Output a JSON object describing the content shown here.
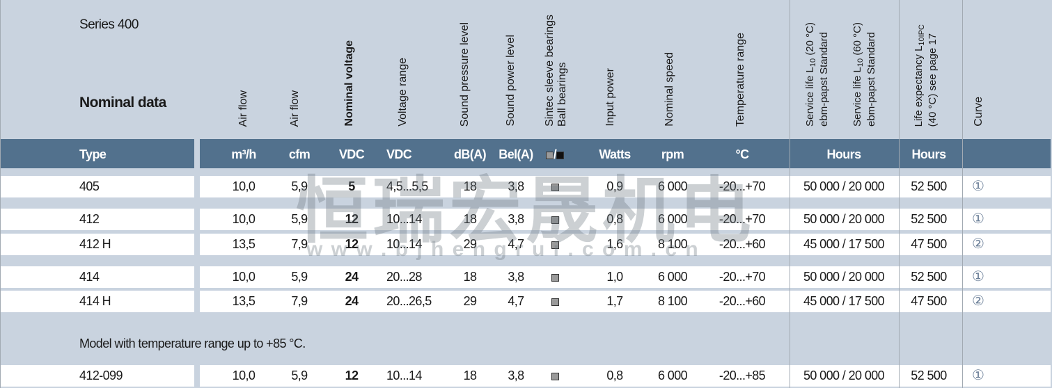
{
  "series": "Series 400",
  "section_title": "Nominal data",
  "columns": [
    {
      "header": "Air flow",
      "unit": "m³/h"
    },
    {
      "header": "Air flow",
      "unit": "cfm"
    },
    {
      "header": "Nominal voltage",
      "unit": "VDC"
    },
    {
      "header": "Voltage range",
      "unit": "VDC"
    },
    {
      "header": "Sound pressure level",
      "unit": "dB(A)"
    },
    {
      "header": "Sound power level",
      "unit": "Bel(A)"
    },
    {
      "header": "Sintec sleeve bearings",
      "header2": "Ball bearings",
      "unit": "/"
    },
    {
      "header": "Input power",
      "unit": "Watts"
    },
    {
      "header": "Nominal speed",
      "unit": "rpm"
    },
    {
      "header": "Temperature range",
      "unit": "°C"
    },
    {
      "header": "Service life L10 (20 °C) ebm-papst Standard",
      "header2": "Service life L10 (60 °C) ebm-papst Standard",
      "unit": "Hours"
    },
    {
      "header": "Life expectancy L10IPC (40 °C) see page 17",
      "unit": "Hours"
    },
    {
      "header": "Curve",
      "unit": ""
    }
  ],
  "header_parts": {
    "sl1_a": "Service life L",
    "sl1_sub": "10",
    "sl1_b": " (20 °C)",
    "sl1_c": "ebm-papst Standard",
    "sl2_a": "Service life L",
    "sl2_sub": "10",
    "sl2_b": " (60 °C)",
    "sl2_c": "ebm-papst Standard",
    "le_a": "Life expectancy L",
    "le_sub": "10IPC",
    "le_c": "(40 °C)  see page 17"
  },
  "type_label": "Type",
  "rows": [
    {
      "type": "405",
      "m3h": "10,0",
      "cfm": "5,9",
      "vnom": "5",
      "vrange": "4,5...5,5",
      "dba": "18",
      "bela": "3,8",
      "bearing": "sintec",
      "watts": "0,9",
      "rpm": "6 000",
      "temp": "-20...+70",
      "life": "50 000 / 20 000",
      "l10ipc": "52 500",
      "curve": "①"
    },
    {
      "type": "412",
      "m3h": "10,0",
      "cfm": "5,9",
      "vnom": "12",
      "vrange": "10...14",
      "dba": "18",
      "bela": "3,8",
      "bearing": "sintec",
      "watts": "0,8",
      "rpm": "6 000",
      "temp": "-20...+70",
      "life": "50 000 / 20 000",
      "l10ipc": "52 500",
      "curve": "①"
    },
    {
      "type": "412 H",
      "m3h": "13,5",
      "cfm": "7,9",
      "vnom": "12",
      "vrange": "10...14",
      "dba": "29",
      "bela": "4,7",
      "bearing": "sintec",
      "watts": "1,6",
      "rpm": "8 100",
      "temp": "-20...+60",
      "life": "45 000 / 17 500",
      "l10ipc": "47 500",
      "curve": "②"
    },
    {
      "type": "414",
      "m3h": "10,0",
      "cfm": "5,9",
      "vnom": "24",
      "vrange": "20...28",
      "dba": "18",
      "bela": "3,8",
      "bearing": "sintec",
      "watts": "1,0",
      "rpm": "6 000",
      "temp": "-20...+70",
      "life": "50 000 / 20 000",
      "l10ipc": "52 500",
      "curve": "①"
    },
    {
      "type": "414 H",
      "m3h": "13,5",
      "cfm": "7,9",
      "vnom": "24",
      "vrange": "20...26,5",
      "dba": "29",
      "bela": "4,7",
      "bearing": "sintec",
      "watts": "1,7",
      "rpm": "8 100",
      "temp": "-20...+60",
      "life": "45 000 / 17 500",
      "l10ipc": "47 500",
      "curve": "②"
    },
    {
      "type": "412-099",
      "m3h": "10,0",
      "cfm": "5,9",
      "vnom": "12",
      "vrange": "10...14",
      "dba": "18",
      "bela": "3,8",
      "bearing": "sintec",
      "watts": "0,8",
      "rpm": "6 000",
      "temp": "-20...+85",
      "life": "50 000 / 20 000",
      "l10ipc": "52 500",
      "curve": "①"
    }
  ],
  "note": "Model with temperature range up to +85 °C.",
  "watermark": {
    "text": "恒瑞宏晟机电",
    "url": "w w w . b j h e n g r u i . c o m . c n"
  },
  "colors": {
    "header_bg": "#c9d3df",
    "band": "#52718d",
    "curve_symbol": "#6b7f98",
    "sintec_square": "#9a9a9a",
    "ball_square": "#111111"
  }
}
